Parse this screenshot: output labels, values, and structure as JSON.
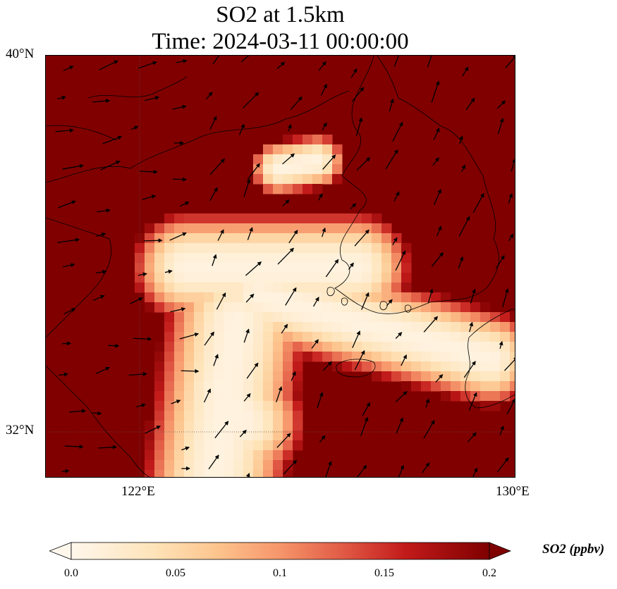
{
  "title": {
    "line1": "SO2 at 1.5km",
    "line2": "Time: 2024-03-11 00:00:00"
  },
  "axes": {
    "lat_labels": [
      "40°N",
      "32°N"
    ],
    "lon_labels": [
      "122°E",
      "130°E"
    ]
  },
  "colorbar": {
    "label": "SO2 (ppbv)",
    "ticks": [
      "0.0",
      "0.05",
      "0.1",
      "0.15",
      "0.2"
    ],
    "range": [
      0.0,
      0.2
    ],
    "colormap": "OrRd",
    "extend": "both"
  },
  "colors": {
    "high": "#800000",
    "low": "#fff8ec"
  }
}
